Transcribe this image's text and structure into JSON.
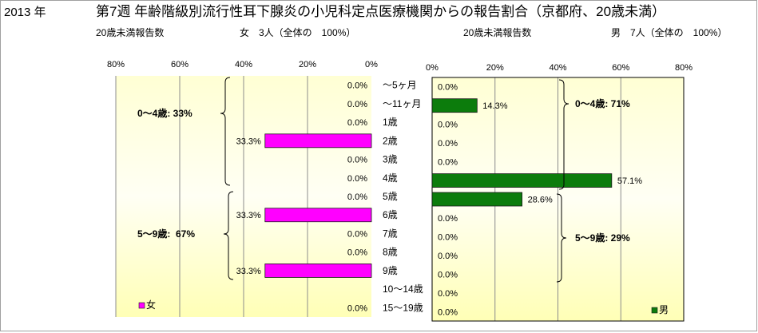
{
  "header": {
    "year": "2013 年",
    "title": "第7週 年齢階級別流行性耳下腺炎の小児科定点医療機関からの報告割合（京都府、20歳未満）",
    "female_count_label": "20歳未満報告数",
    "female_count": "女　3人（全体の　100%）",
    "male_count_label": "20歳未満報告数",
    "male_count": "男　7人（全体の　100%）"
  },
  "chart_data": {
    "type": "bar",
    "orientation": "horizontal",
    "categories": [
      "～5ヶ月",
      "～11ヶ月",
      "1歳",
      "2歳",
      "3歳",
      "4歳",
      "5歳",
      "6歳",
      "7歳",
      "8歳",
      "9歳",
      "10～14歳",
      "15～19歳"
    ],
    "xlim": [
      0,
      80
    ],
    "grid": true,
    "series": [
      {
        "name": "女",
        "color": "#ff00ff",
        "values": [
          0,
          0,
          0,
          33.3,
          0,
          0,
          0,
          33.3,
          0,
          0,
          33.3,
          0,
          0
        ],
        "value_labels": [
          "0.0%",
          "0.0%",
          "0.0%",
          "33.3%",
          "0.0%",
          "0.0%",
          "0.0%",
          "33.3%",
          "0.0%",
          "0.0%",
          "33.3%",
          null,
          "0.0%"
        ],
        "ticks": [
          80,
          60,
          40,
          20,
          0
        ],
        "tick_labels": [
          "80%",
          "60%",
          "40%",
          "20%",
          "0%"
        ],
        "annotations": [
          "0～4歳: 33%",
          "5～9歳:  67%"
        ],
        "legend_position": "bottom-left"
      },
      {
        "name": "男",
        "color": "#0c7c0c",
        "values": [
          0,
          14.3,
          0,
          0,
          0,
          57.1,
          28.6,
          0,
          0,
          0,
          0,
          0,
          0
        ],
        "value_labels": [
          "0.0%",
          "14.3%",
          "0.0%",
          "0.0%",
          "0.0%",
          "57.1%",
          "28.6%",
          "0.0%",
          "0.0%",
          "0.0%",
          "0.0%",
          "0.0%",
          "0.0%"
        ],
        "ticks": [
          0,
          20,
          40,
          60,
          80
        ],
        "tick_labels": [
          "0%",
          "20%",
          "40%",
          "60%",
          "80%"
        ],
        "annotations": [
          "0～4歳: 71%",
          "5～9歳: 29%"
        ],
        "legend_position": "bottom-right"
      }
    ]
  }
}
